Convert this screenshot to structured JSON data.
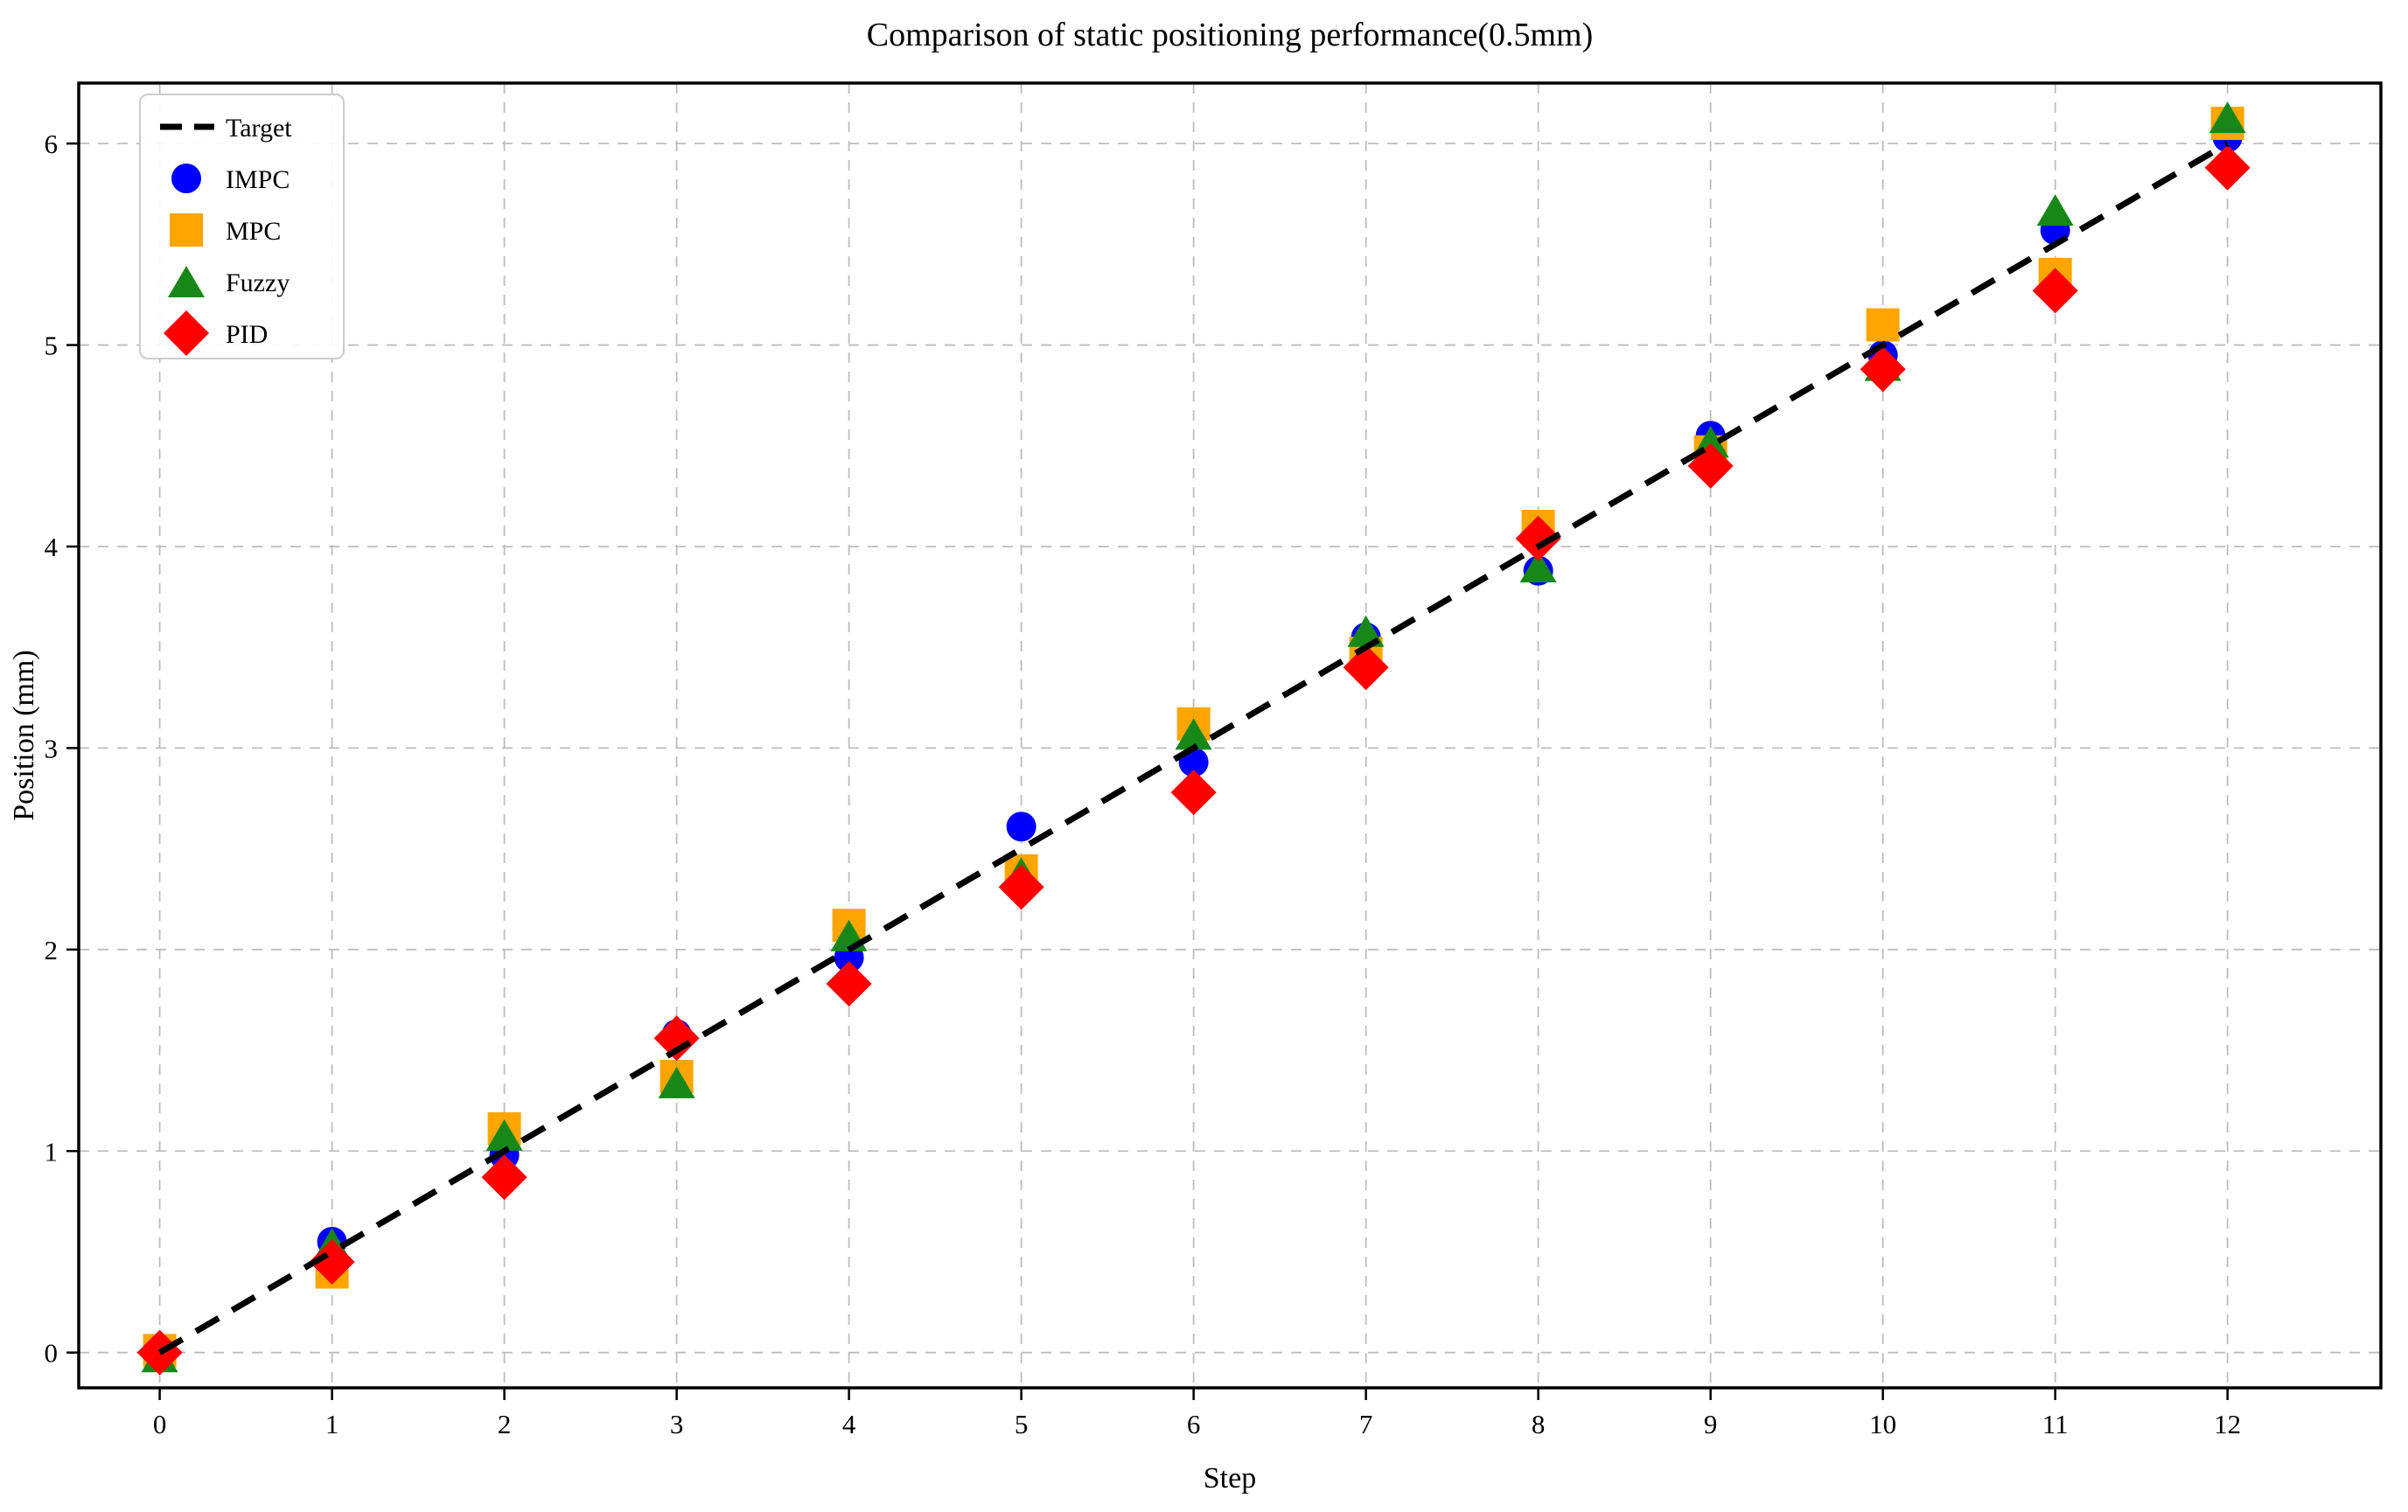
{
  "chart_data": {
    "type": "scatter",
    "title": "Comparison of static positioning performance(0.5mm)",
    "xlabel": "Step",
    "ylabel": "Position (mm)",
    "x": [
      0,
      1,
      2,
      3,
      4,
      5,
      6,
      7,
      8,
      9,
      10,
      11,
      12
    ],
    "xticks": [
      0,
      1,
      2,
      3,
      4,
      5,
      6,
      7,
      8,
      9,
      10,
      11,
      12
    ],
    "yticks": [
      0,
      1,
      2,
      3,
      4,
      5,
      6
    ],
    "xlim": [
      -0.47,
      12.89
    ],
    "ylim": [
      -0.175,
      6.3
    ],
    "grid": true,
    "grid_color": "#bdbdbd",
    "legend_position": "upper left",
    "legend": [
      "Target",
      "IMPC",
      "MPC",
      "Fuzzy",
      "PID"
    ],
    "target_line": {
      "name": "Target",
      "style": "dashed",
      "color": "#000000",
      "from": [
        0,
        0
      ],
      "to": [
        12,
        6
      ],
      "mm_per_step": 0.5
    },
    "series": [
      {
        "name": "IMPC",
        "marker": "circle",
        "color": "#0000ff",
        "values": [
          0.0,
          0.55,
          0.98,
          1.58,
          1.96,
          2.61,
          2.93,
          3.55,
          3.88,
          4.55,
          4.95,
          5.57,
          6.03
        ]
      },
      {
        "name": "MPC",
        "marker": "square",
        "color": "#ffa500",
        "values": [
          0.01,
          0.4,
          1.11,
          1.37,
          2.12,
          2.39,
          3.12,
          3.47,
          4.1,
          4.47,
          5.1,
          5.35,
          6.1
        ]
      },
      {
        "name": "Fuzzy",
        "marker": "triangle",
        "color": "#178717",
        "values": [
          -0.02,
          0.54,
          1.08,
          1.34,
          2.07,
          2.38,
          3.07,
          3.58,
          3.9,
          4.52,
          4.9,
          5.67,
          6.13
        ]
      },
      {
        "name": "PID",
        "marker": "diamond",
        "color": "#ff0000",
        "values": [
          0.0,
          0.45,
          0.87,
          1.56,
          1.83,
          2.31,
          2.78,
          3.4,
          4.04,
          4.4,
          4.88,
          5.27,
          5.88
        ]
      }
    ]
  }
}
